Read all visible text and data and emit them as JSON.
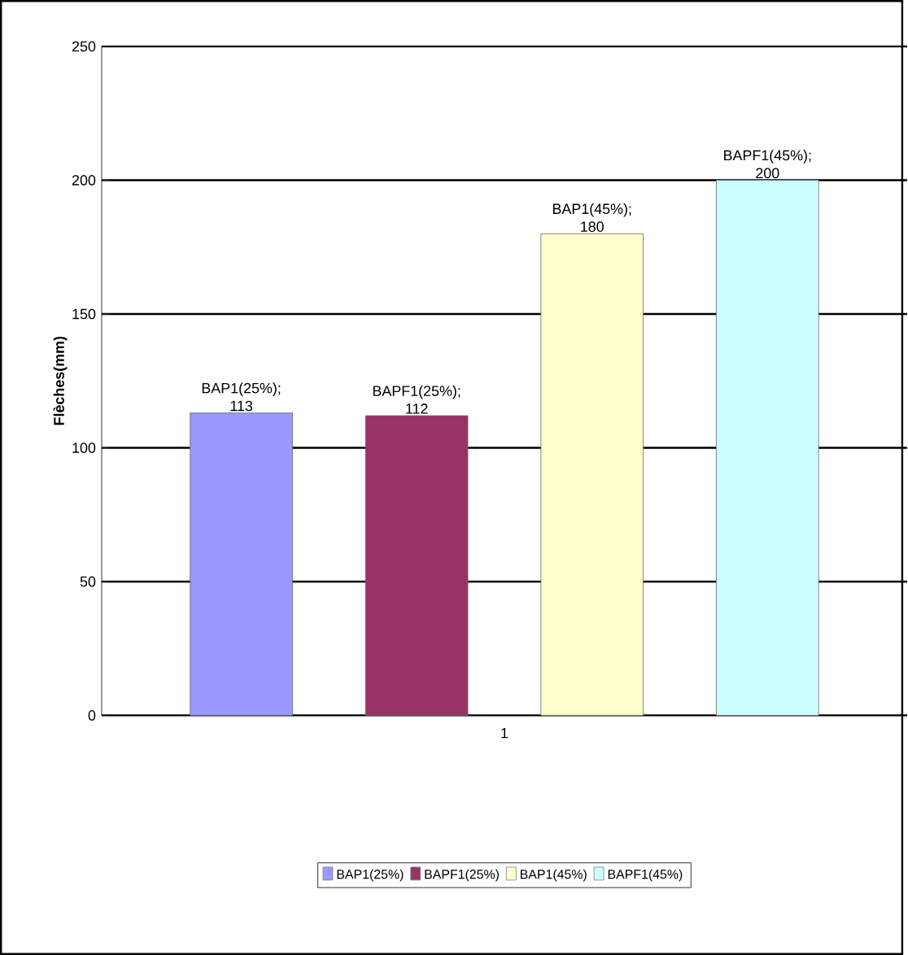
{
  "chart_data": {
    "type": "bar",
    "categories": [
      "1"
    ],
    "ylabel": "Flèches(mm)",
    "series": [
      {
        "name": "BAP1(25%)",
        "color": "#9999ff",
        "values": [
          113
        ],
        "value_labels": [
          "BAP1(25%); 113"
        ]
      },
      {
        "name": "BAPF1(25%)",
        "color": "#993366",
        "values": [
          112
        ],
        "value_labels": [
          "BAPF1(25%); 112"
        ]
      },
      {
        "name": "BAP1(45%)",
        "color": "#ffffcc",
        "values": [
          180
        ],
        "value_labels": [
          "BAP1(45%); 180"
        ]
      },
      {
        "name": "BAPF1(45%)",
        "color": "#ccffff",
        "values": [
          200
        ],
        "value_labels": [
          "BAPF1(45%); 200"
        ]
      }
    ],
    "ylim": [
      0,
      250
    ],
    "yticks": [
      0,
      50,
      100,
      150,
      200,
      250
    ],
    "grid": "y",
    "legend": "bottom"
  }
}
